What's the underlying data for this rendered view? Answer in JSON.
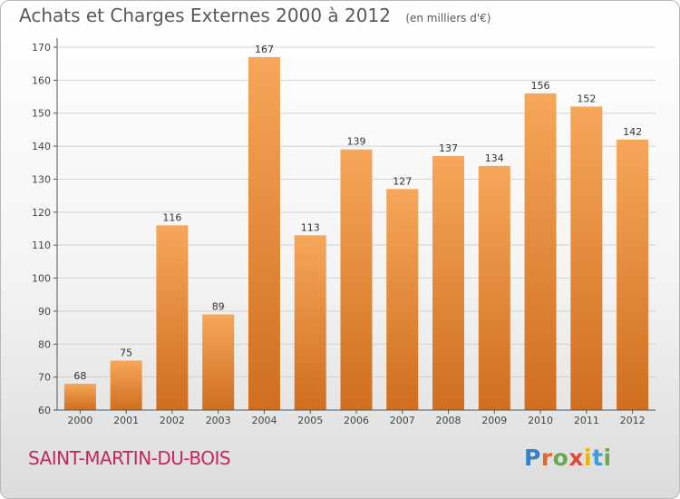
{
  "header": {
    "title": "Achats et Charges Externes 2000 à 2012",
    "unit": "(en milliers d'€)"
  },
  "location": "SAINT-MARTIN-DU-BOIS",
  "brand": {
    "letters": [
      "P",
      "r",
      "o",
      "x",
      "i",
      "t",
      "i"
    ],
    "colors": [
      "#3a7fc1",
      "#e0682a",
      "#6aa84f",
      "#e04a3a",
      "#f0b400",
      "#3a9fd8",
      "#6aa84f"
    ]
  },
  "colors": {
    "bar_top": "#f6a75a",
    "bar_bottom": "#cf6e1e",
    "grid": "#d2d2d2",
    "axis": "#555555"
  },
  "chart_data": {
    "type": "bar",
    "title": "Achats et Charges Externes 2000 à 2012",
    "ylabel": "(en milliers d'€)",
    "categories": [
      "2000",
      "2001",
      "2002",
      "2003",
      "2004",
      "2005",
      "2006",
      "2007",
      "2008",
      "2009",
      "2010",
      "2011",
      "2012"
    ],
    "values": [
      68,
      75,
      116,
      89,
      167,
      113,
      139,
      127,
      137,
      134,
      156,
      152,
      142
    ],
    "ylim": [
      60,
      170
    ],
    "yticks": [
      60,
      70,
      80,
      90,
      100,
      110,
      120,
      130,
      140,
      150,
      160,
      170
    ],
    "grid": true,
    "legend": "none"
  }
}
